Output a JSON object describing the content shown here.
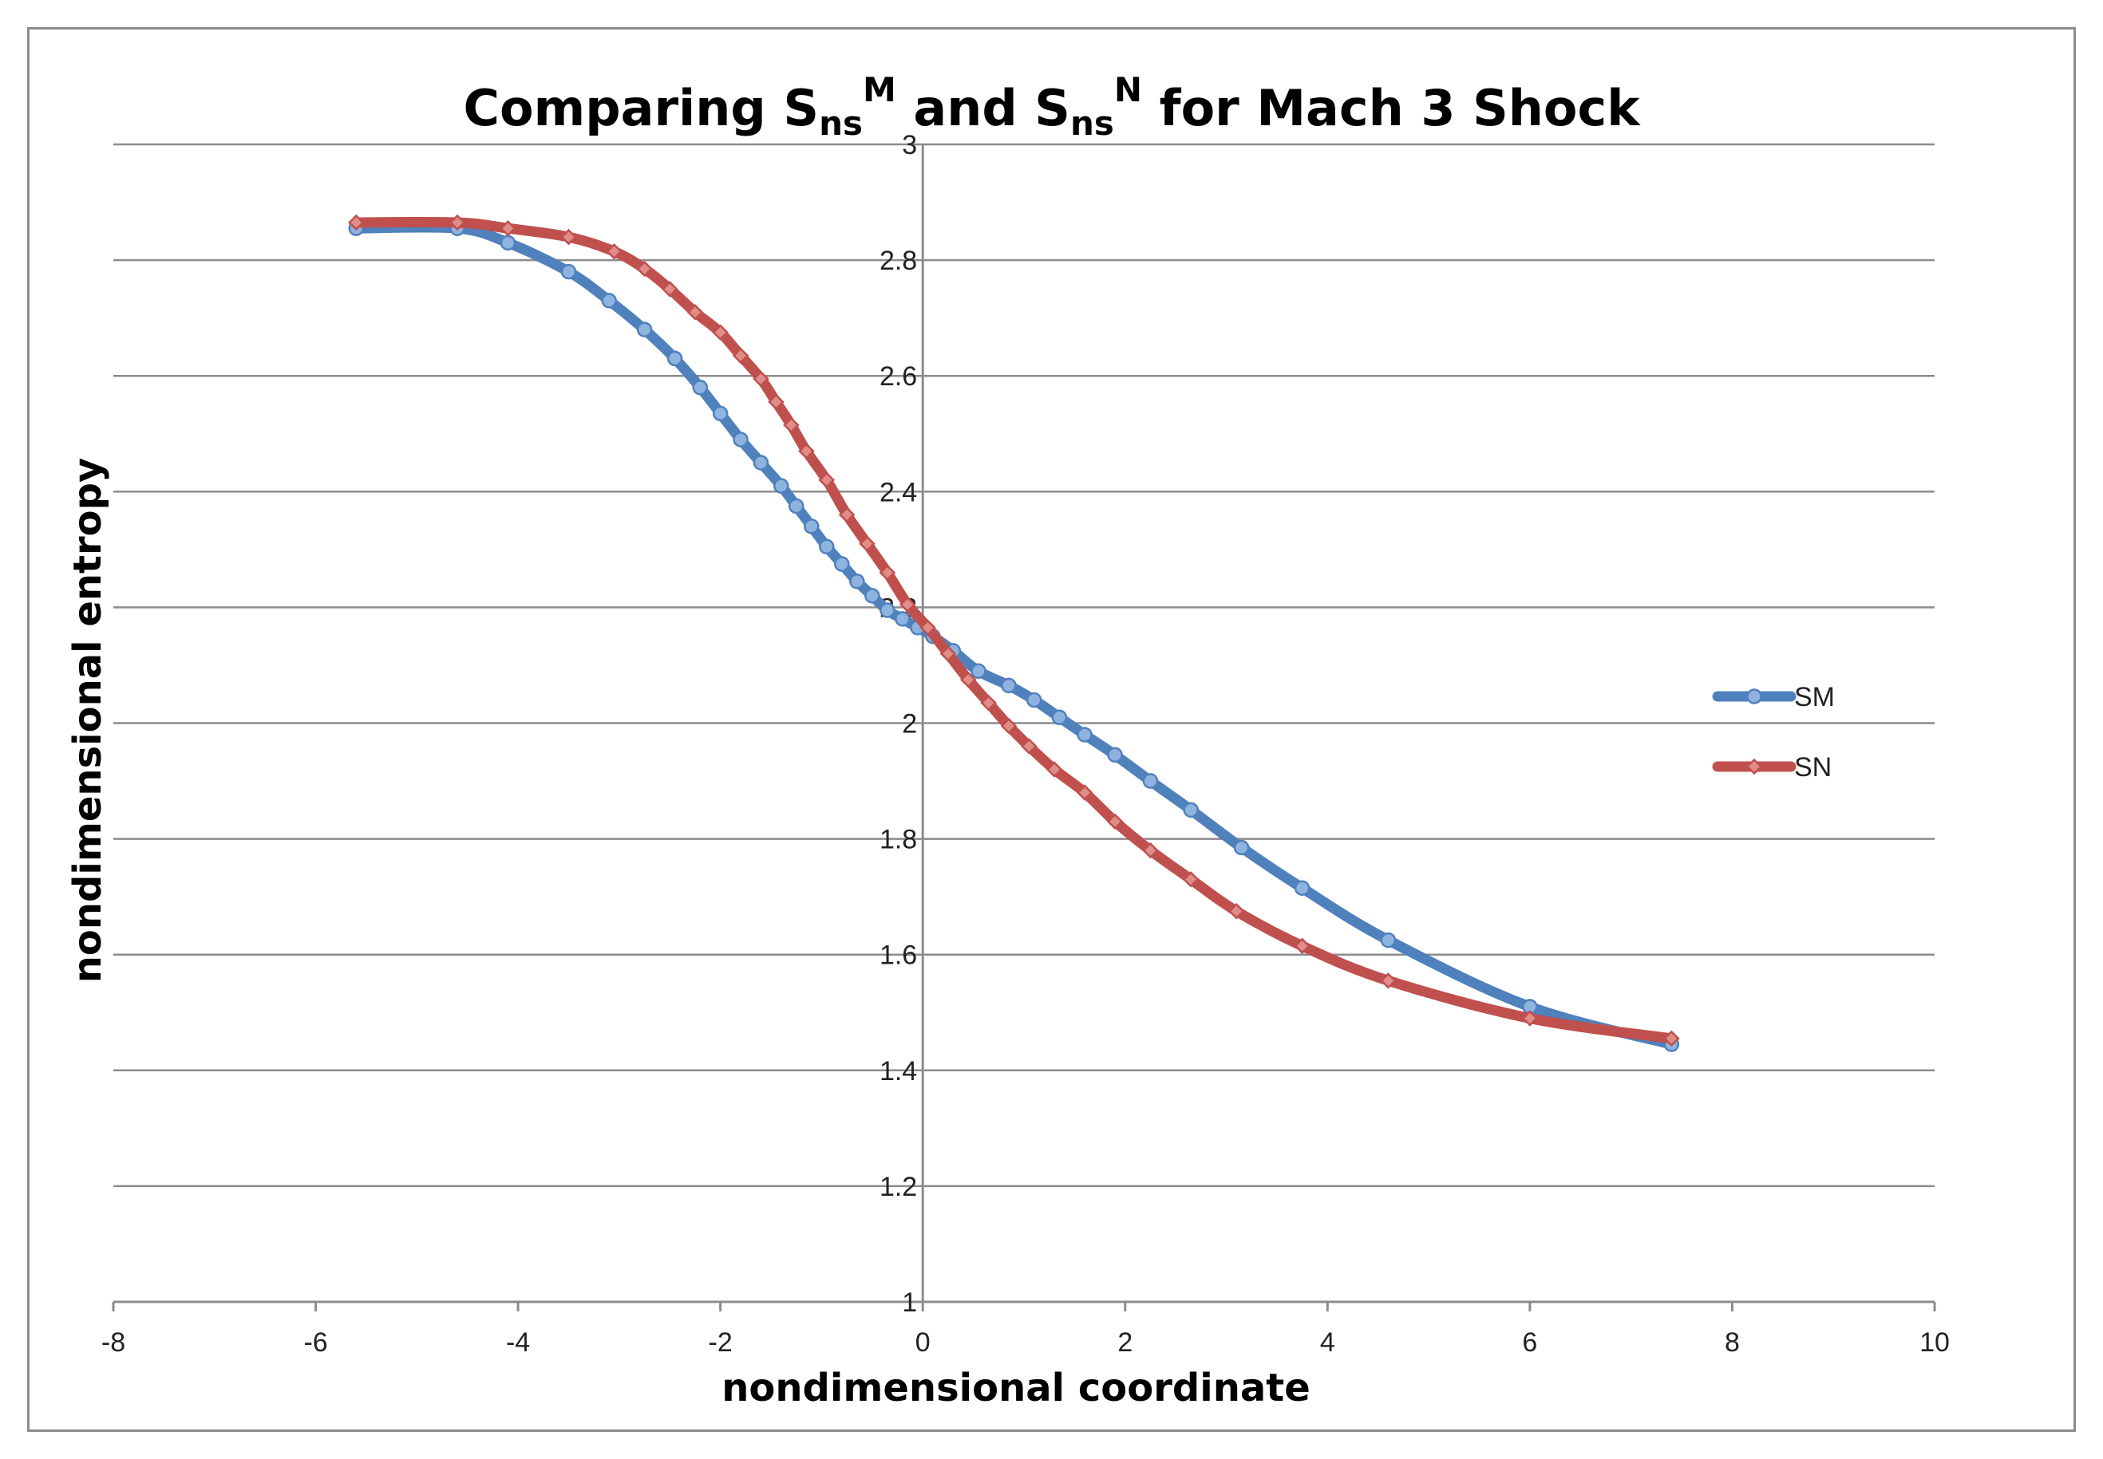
{
  "chart_data": {
    "type": "line",
    "title": {
      "prefix": "Comparing S",
      "sub1": "ns",
      "sup1": "M",
      "middle": " and S",
      "sub2": "ns",
      "sup2": "N",
      "suffix": " for Mach 3 Shock"
    },
    "xlabel": "nondimensional coordinate",
    "ylabel": "nondimensional entropy",
    "xlim": [
      -8,
      10
    ],
    "ylim": [
      1,
      3
    ],
    "xticks": [
      "-8",
      "-6",
      "-4",
      "-2",
      "0",
      "2",
      "4",
      "6",
      "8",
      "10"
    ],
    "yticks": [
      "1",
      "1.2",
      "1.4",
      "1.6",
      "1.8",
      "2",
      "2.2",
      "2.4",
      "2.6",
      "2.8",
      "3"
    ],
    "grid": "horizontal",
    "legend_position": "right",
    "colors": {
      "SM": "#4f81bd",
      "SN": "#c0504d",
      "grid": "#8c8c8c",
      "frame": "#8c8c8c"
    },
    "series": [
      {
        "name": "SM",
        "marker": "circle",
        "x": [
          -5.6,
          -4.6,
          -4.1,
          -3.5,
          -3.1,
          -2.75,
          -2.45,
          -2.2,
          -2.0,
          -1.8,
          -1.6,
          -1.4,
          -1.25,
          -1.1,
          -0.95,
          -0.8,
          -0.65,
          -0.5,
          -0.35,
          -0.2,
          -0.05,
          0.1,
          0.3,
          0.55,
          0.85,
          1.1,
          1.35,
          1.6,
          1.9,
          2.25,
          2.65,
          3.15,
          3.75,
          4.6,
          6.0,
          7.4
        ],
        "y": [
          2.855,
          2.855,
          2.83,
          2.78,
          2.73,
          2.68,
          2.63,
          2.58,
          2.535,
          2.49,
          2.45,
          2.41,
          2.375,
          2.34,
          2.305,
          2.275,
          2.245,
          2.22,
          2.195,
          2.18,
          2.165,
          2.15,
          2.125,
          2.09,
          2.065,
          2.04,
          2.01,
          1.98,
          1.945,
          1.9,
          1.85,
          1.785,
          1.715,
          1.625,
          1.51,
          1.445
        ]
      },
      {
        "name": "SN",
        "marker": "diamond",
        "x": [
          -5.6,
          -4.6,
          -4.1,
          -3.5,
          -3.05,
          -2.75,
          -2.5,
          -2.25,
          -2.0,
          -1.8,
          -1.6,
          -1.45,
          -1.3,
          -1.15,
          -0.95,
          -0.75,
          -0.55,
          -0.35,
          -0.15,
          0.05,
          0.25,
          0.45,
          0.65,
          0.85,
          1.05,
          1.3,
          1.6,
          1.9,
          2.25,
          2.65,
          3.1,
          3.75,
          4.6,
          6.0,
          7.4
        ],
        "y": [
          2.865,
          2.865,
          2.855,
          2.84,
          2.815,
          2.785,
          2.75,
          2.71,
          2.675,
          2.635,
          2.595,
          2.555,
          2.515,
          2.47,
          2.42,
          2.36,
          2.31,
          2.26,
          2.205,
          2.165,
          2.12,
          2.075,
          2.035,
          1.995,
          1.96,
          1.92,
          1.88,
          1.83,
          1.78,
          1.73,
          1.675,
          1.615,
          1.555,
          1.49,
          1.455
        ]
      }
    ]
  }
}
